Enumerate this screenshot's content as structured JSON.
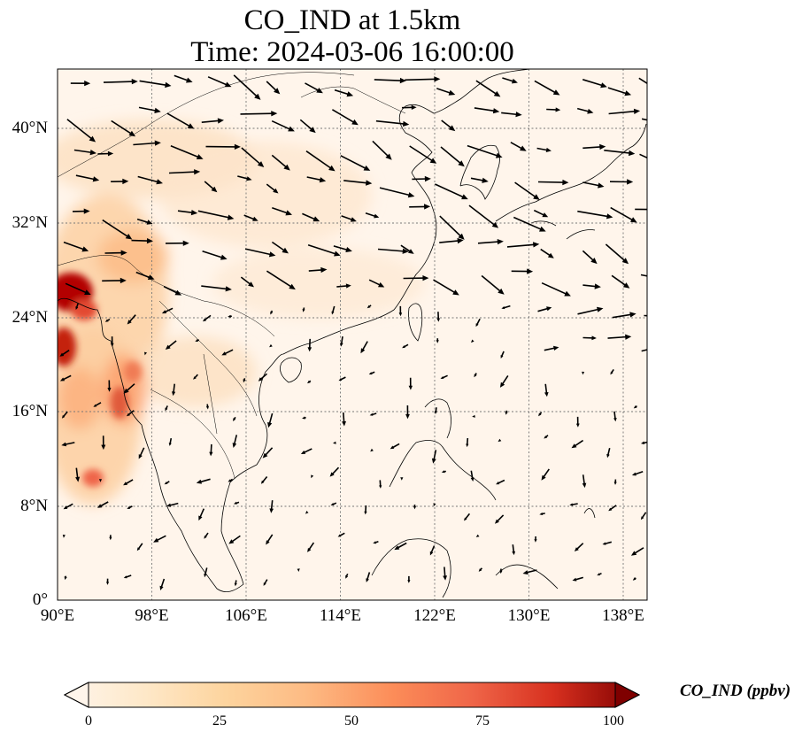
{
  "title": {
    "line1": "CO_IND at 1.5km",
    "line2": "Time: 2024-03-06 16:00:00"
  },
  "map": {
    "x_ticks": [
      "90°E",
      "98°E",
      "106°E",
      "114°E",
      "122°E",
      "130°E",
      "138°E"
    ],
    "y_ticks": [
      "40°N",
      "32°N",
      "24°N",
      "16°N",
      "8°N",
      "0°"
    ],
    "lon_range": [
      90,
      140
    ],
    "lat_range": [
      0,
      45
    ],
    "gridlines": "dotted",
    "field": "CO_IND concentration (shaded) with wind vectors (arrows)"
  },
  "colorbar": {
    "label": "CO_IND (ppbv)",
    "ticks": [
      "0",
      "25",
      "50",
      "75",
      "100"
    ],
    "range": [
      0,
      100
    ],
    "colormap": [
      "#fff5eb",
      "#fdd49e",
      "#fdbb84",
      "#fc8d59",
      "#ef6548",
      "#d7301f",
      "#b30000",
      "#7f0000"
    ],
    "extend": "both"
  },
  "colors": {
    "background": "#fff5eb",
    "coastline": "#000000",
    "grid": "#777777",
    "arrow": "#000000"
  }
}
